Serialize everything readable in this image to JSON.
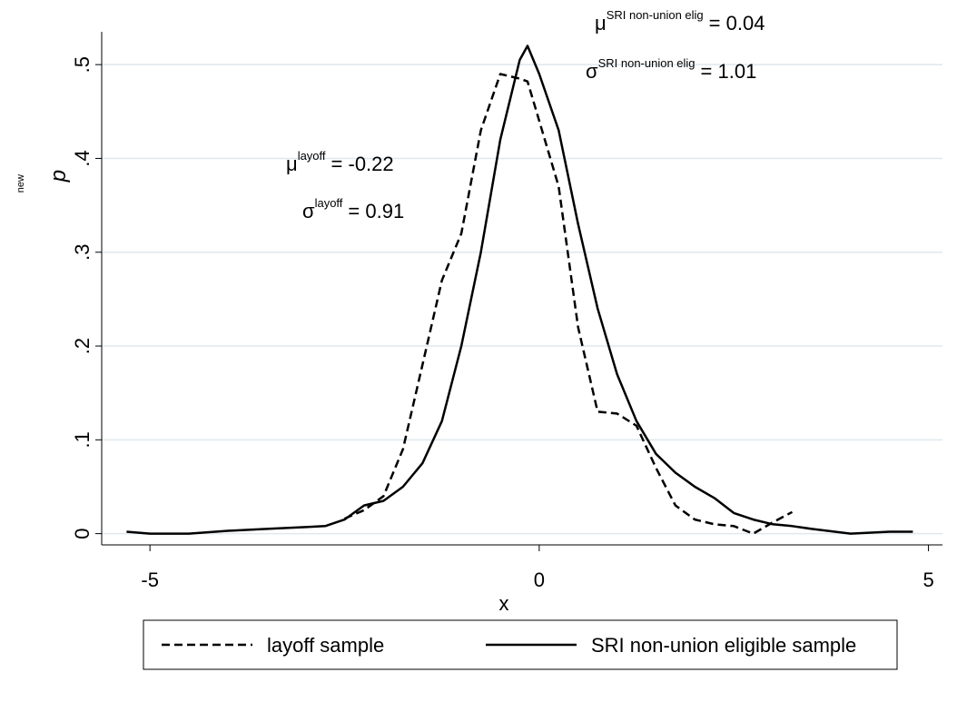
{
  "chart_data": {
    "type": "line",
    "x_label": "x",
    "y_label": "p",
    "y_label_sup": "new",
    "x": [
      -5.3,
      -5,
      -4.5,
      -4,
      -3.5,
      -3,
      -2.75,
      -2.5,
      -2.25,
      -2,
      -1.75,
      -1.5,
      -1.25,
      -1,
      -0.75,
      -0.5,
      -0.25,
      -0.15,
      0,
      0.25,
      0.5,
      0.75,
      1,
      1.25,
      1.5,
      1.75,
      2,
      2.25,
      2.5,
      2.75,
      3,
      3.25,
      3.5,
      4,
      4.5,
      4.8
    ],
    "series": [
      {
        "name": "layoff sample",
        "color": "#000000",
        "dash": "dashed",
        "values": [
          null,
          null,
          null,
          null,
          null,
          null,
          null,
          0.016,
          0.025,
          0.04,
          0.09,
          0.18,
          0.27,
          0.32,
          0.43,
          0.49,
          0.485,
          0.482,
          0.44,
          0.37,
          0.22,
          0.13,
          0.128,
          0.115,
          0.07,
          0.03,
          0.015,
          0.01,
          0.008,
          0,
          0.012,
          0.023,
          null,
          null,
          null,
          null
        ]
      },
      {
        "name": "SRI non-union eligible sample",
        "color": "#000000",
        "dash": "solid",
        "values": [
          0.002,
          0,
          0,
          0.003,
          0.005,
          0.007,
          0.008,
          0.015,
          0.03,
          0.035,
          0.05,
          0.075,
          0.12,
          0.2,
          0.3,
          0.42,
          0.505,
          0.52,
          0.49,
          0.43,
          0.33,
          0.24,
          0.17,
          0.12,
          0.085,
          0.065,
          0.05,
          0.038,
          0.022,
          0.015,
          0.01,
          0.008,
          0.005,
          0,
          0.002,
          0.002
        ]
      }
    ],
    "xlim": [
      -5.62,
      5.18
    ],
    "ylim": [
      -0.012,
      0.535
    ],
    "xticks": [
      -5,
      0,
      5
    ],
    "yticks": [
      0,
      {
        "value": 0.1,
        "label": ".1"
      },
      {
        "value": 0.2,
        "label": ".2"
      },
      {
        "value": 0.3,
        "label": ".3"
      },
      {
        "value": 0.4,
        "label": ".4"
      },
      {
        "value": 0.5,
        "label": ".5"
      }
    ],
    "grid": true,
    "legend": "bottom",
    "annotations": [
      {
        "symbol": "μ",
        "sup": "layoff",
        "text": "= -0.22"
      },
      {
        "symbol": "σ",
        "sup": "layoff",
        "text": "= 0.91"
      },
      {
        "symbol": "μ",
        "sup": "SRI non-union elig",
        "text": "= 0.04"
      },
      {
        "symbol": "σ",
        "sup": "SRI non-union elig",
        "text": "= 1.01"
      }
    ]
  }
}
